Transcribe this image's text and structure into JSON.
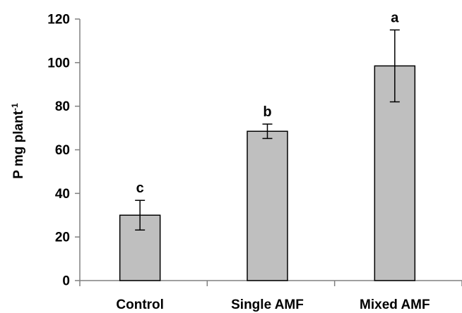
{
  "chart_data": {
    "type": "bar",
    "categories": [
      "Control",
      "Single AMF",
      "Mixed AMF"
    ],
    "values": [
      30,
      68.5,
      98.5
    ],
    "errors": [
      6.8,
      3.3,
      16.5
    ],
    "significance": [
      "c",
      "b",
      "a"
    ],
    "xlabel": "",
    "ylabel": "P mg plant",
    "ylabel_superscript": "-1",
    "ylim": [
      0,
      120
    ],
    "yticks": [
      0,
      20,
      40,
      60,
      80,
      100,
      120
    ],
    "grid": false,
    "legend": "none",
    "colors": {
      "bar_fill": "#bfbfbf",
      "bar_stroke": "#000000",
      "axis": "#808080"
    }
  }
}
